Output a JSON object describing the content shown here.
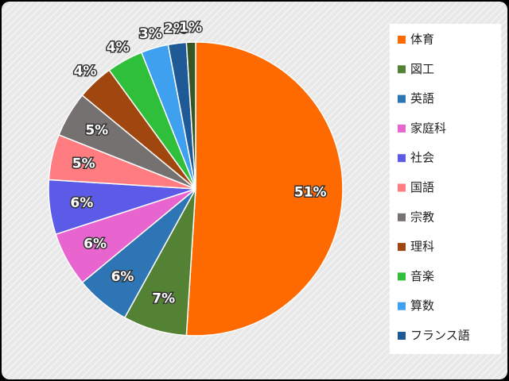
{
  "chart_data": {
    "type": "pie",
    "categories": [
      "体育",
      "図工",
      "英語",
      "家庭科",
      "社会",
      "国語",
      "宗教",
      "理科",
      "音楽",
      "算数",
      "フランス語",
      null
    ],
    "values": [
      51,
      7,
      6,
      6,
      6,
      5,
      5,
      4,
      4,
      3,
      2,
      1
    ],
    "value_labels": [
      "51%",
      "7%",
      "6%",
      "6%",
      "6%",
      "5%",
      "5%",
      "4%",
      "4%",
      "3%",
      "2%",
      "1%"
    ],
    "colors": [
      "#ff6a00",
      "#548235",
      "#2e75b6",
      "#e865cf",
      "#5b5be8",
      "#ff7c80",
      "#767171",
      "#a0460f",
      "#2fbf3a",
      "#3fa0f0",
      "#1f5a96",
      "#375623"
    ],
    "legend": "right"
  }
}
